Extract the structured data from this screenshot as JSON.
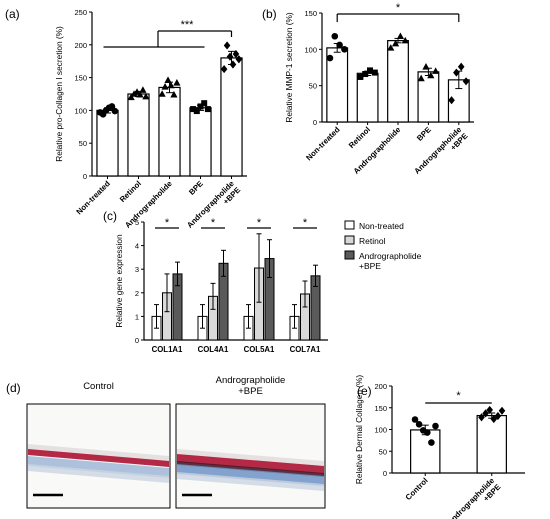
{
  "chart_data": [
    {
      "panel": "(a)",
      "type": "bar",
      "ylabel": "Relative pro-Collagen I secretion (%)",
      "ylim": [
        0,
        250
      ],
      "yticks": [
        0,
        50,
        100,
        150,
        200,
        250
      ],
      "categories": [
        "Non-treated",
        "Retinol",
        "Andrographolide",
        "BPE",
        "Andrographolide\n+BPE"
      ],
      "values": [
        100,
        125,
        135,
        104,
        180
      ],
      "errors": [
        4,
        4,
        8,
        4,
        10
      ],
      "points": [
        [
          97,
          94,
          100,
          104,
          106,
          99
        ],
        [
          120,
          125,
          128,
          124,
          131,
          121
        ],
        [
          125,
          136,
          146,
          138,
          124,
          142
        ],
        [
          102,
          99,
          106,
          111,
          102
        ],
        [
          163,
          199,
          182,
          170,
          186,
          178
        ]
      ],
      "markers": [
        "circle",
        "triangle",
        "triangle",
        "square",
        "diamond"
      ],
      "significance": [
        {
          "label": "***",
          "groups": [
            0,
            3
          ],
          "vs": 4
        }
      ]
    },
    {
      "panel": "(b)",
      "type": "bar",
      "ylabel": "Relative MMP-1 secretion (%)",
      "ylim": [
        0,
        150
      ],
      "yticks": [
        0,
        50,
        100,
        150
      ],
      "categories": [
        "Non-treated",
        "Retinol",
        "Andrographolide",
        "BPE",
        "Andrographolide\n+BPE"
      ],
      "values": [
        102,
        67,
        112,
        69,
        58
      ],
      "errors": [
        6,
        3,
        3,
        5,
        12
      ],
      "points": [
        [
          88,
          118,
          106,
          100
        ],
        [
          62,
          66,
          71,
          68
        ],
        [
          102,
          108,
          118,
          112
        ],
        [
          60,
          76,
          64,
          70
        ],
        [
          30,
          68,
          76,
          56
        ]
      ],
      "markers": [
        "circle",
        "square",
        "triangle",
        "triangle",
        "diamond"
      ],
      "significance": [
        {
          "label": "*",
          "from": 0,
          "to": 4
        }
      ]
    },
    {
      "panel": "(c)",
      "type": "bar",
      "ylabel": "Relative gene expression",
      "ylim": [
        0,
        5
      ],
      "yticks": [
        0,
        1,
        2,
        3,
        4,
        5
      ],
      "categories": [
        "COL1A1",
        "COL4A1",
        "COL5A1",
        "COL7A1"
      ],
      "series": [
        {
          "name": "Non-treated",
          "values": [
            1,
            1,
            1,
            1
          ],
          "errors": [
            0.5,
            0.5,
            0.5,
            0.5
          ],
          "color": "#ffffff"
        },
        {
          "name": "Retinol",
          "values": [
            2.0,
            1.85,
            3.05,
            1.95
          ],
          "errors": [
            0.8,
            0.55,
            1.45,
            0.55
          ],
          "color": "#d9d9d9"
        },
        {
          "name": "Andrographolide\n+BPE",
          "values": [
            2.8,
            3.25,
            3.45,
            2.72
          ],
          "errors": [
            0.5,
            0.55,
            0.8,
            0.45
          ],
          "color": "#5a5a5a"
        }
      ],
      "significance": [
        {
          "label": "*"
        },
        {
          "label": "*"
        },
        {
          "label": "*"
        },
        {
          "label": "*"
        }
      ]
    },
    {
      "panel": "(e)",
      "type": "bar",
      "ylabel": "Relative Dermal Collagen (%)",
      "ylim": [
        0,
        200
      ],
      "yticks": [
        0,
        50,
        100,
        150,
        200
      ],
      "categories": [
        "Control",
        "Andrographolide\n+BPE"
      ],
      "values": [
        99,
        132
      ],
      "errors": [
        11,
        6
      ],
      "points": [
        [
          123,
          112,
          98,
          93,
          70,
          108
        ],
        [
          128,
          137,
          145,
          124,
          131,
          143
        ]
      ],
      "markers": [
        "circle",
        "diamond"
      ],
      "significance": [
        {
          "label": "*",
          "from": 0,
          "to": 1
        }
      ]
    }
  ],
  "panel_d": {
    "label": "(d)",
    "images": [
      {
        "title": "Control"
      },
      {
        "title": "Andrographolide\n+BPE"
      }
    ]
  },
  "colors": {
    "axis": "#000000",
    "bar_fill": "#ffffff",
    "gray": "#d9d9d9",
    "dark": "#5a5a5a",
    "collagen_red": "#b01e3c",
    "fiber_blue": "#6f93c6"
  }
}
